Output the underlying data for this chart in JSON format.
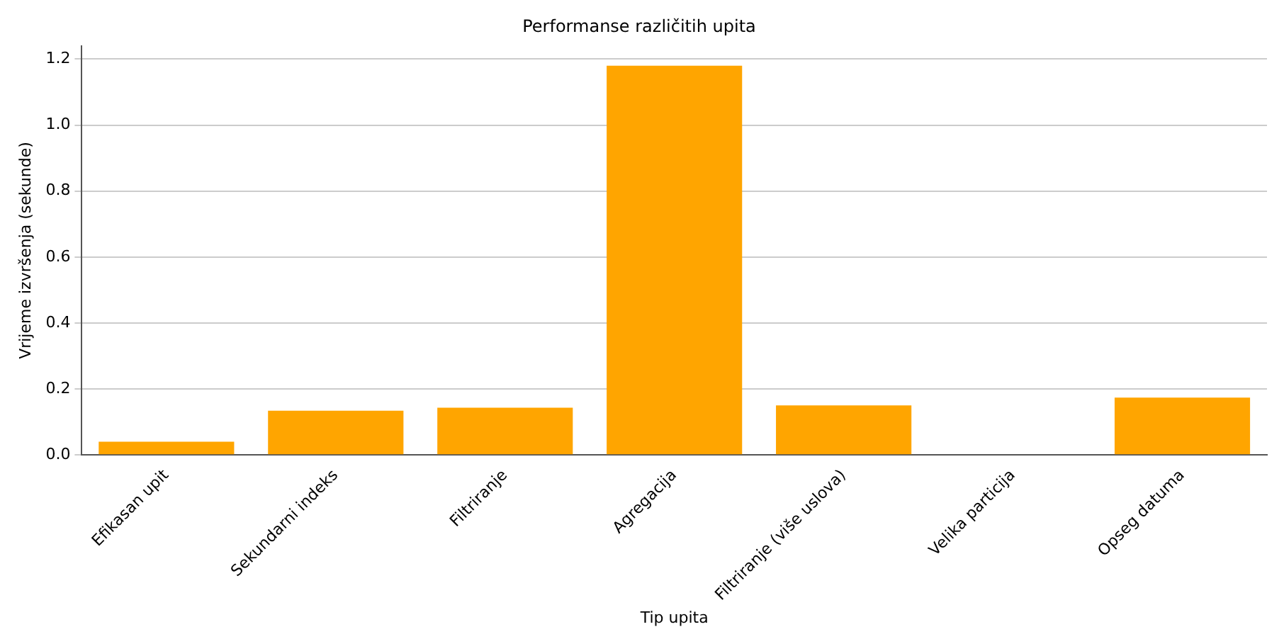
{
  "chart_data": {
    "type": "bar",
    "title": "Performanse različitih upita",
    "xlabel": "Tip upita",
    "ylabel": "Vrijeme izvršenja (sekunde)",
    "categories": [
      "Efikasan upit",
      "Sekundarni indeks",
      "Filtriranje",
      "Agregacija",
      "Filtriranje (više uslova)",
      "Velika particija",
      "Opseg datuma"
    ],
    "values": [
      0.04,
      0.134,
      0.143,
      1.18,
      0.15,
      0,
      0.174
    ],
    "color": "#ffa500",
    "ylim": [
      0,
      1.24
    ],
    "yticks": [
      {
        "value": 0,
        "label": "0.0"
      },
      {
        "value": 0.2,
        "label": "0.2"
      },
      {
        "value": 0.4,
        "label": "0.4"
      },
      {
        "value": 0.6,
        "label": "0.6"
      },
      {
        "value": 0.8,
        "label": "0.8"
      },
      {
        "value": 1,
        "label": "1.0"
      },
      {
        "value": 1.2,
        "label": "1.2"
      }
    ],
    "grid": "y"
  }
}
